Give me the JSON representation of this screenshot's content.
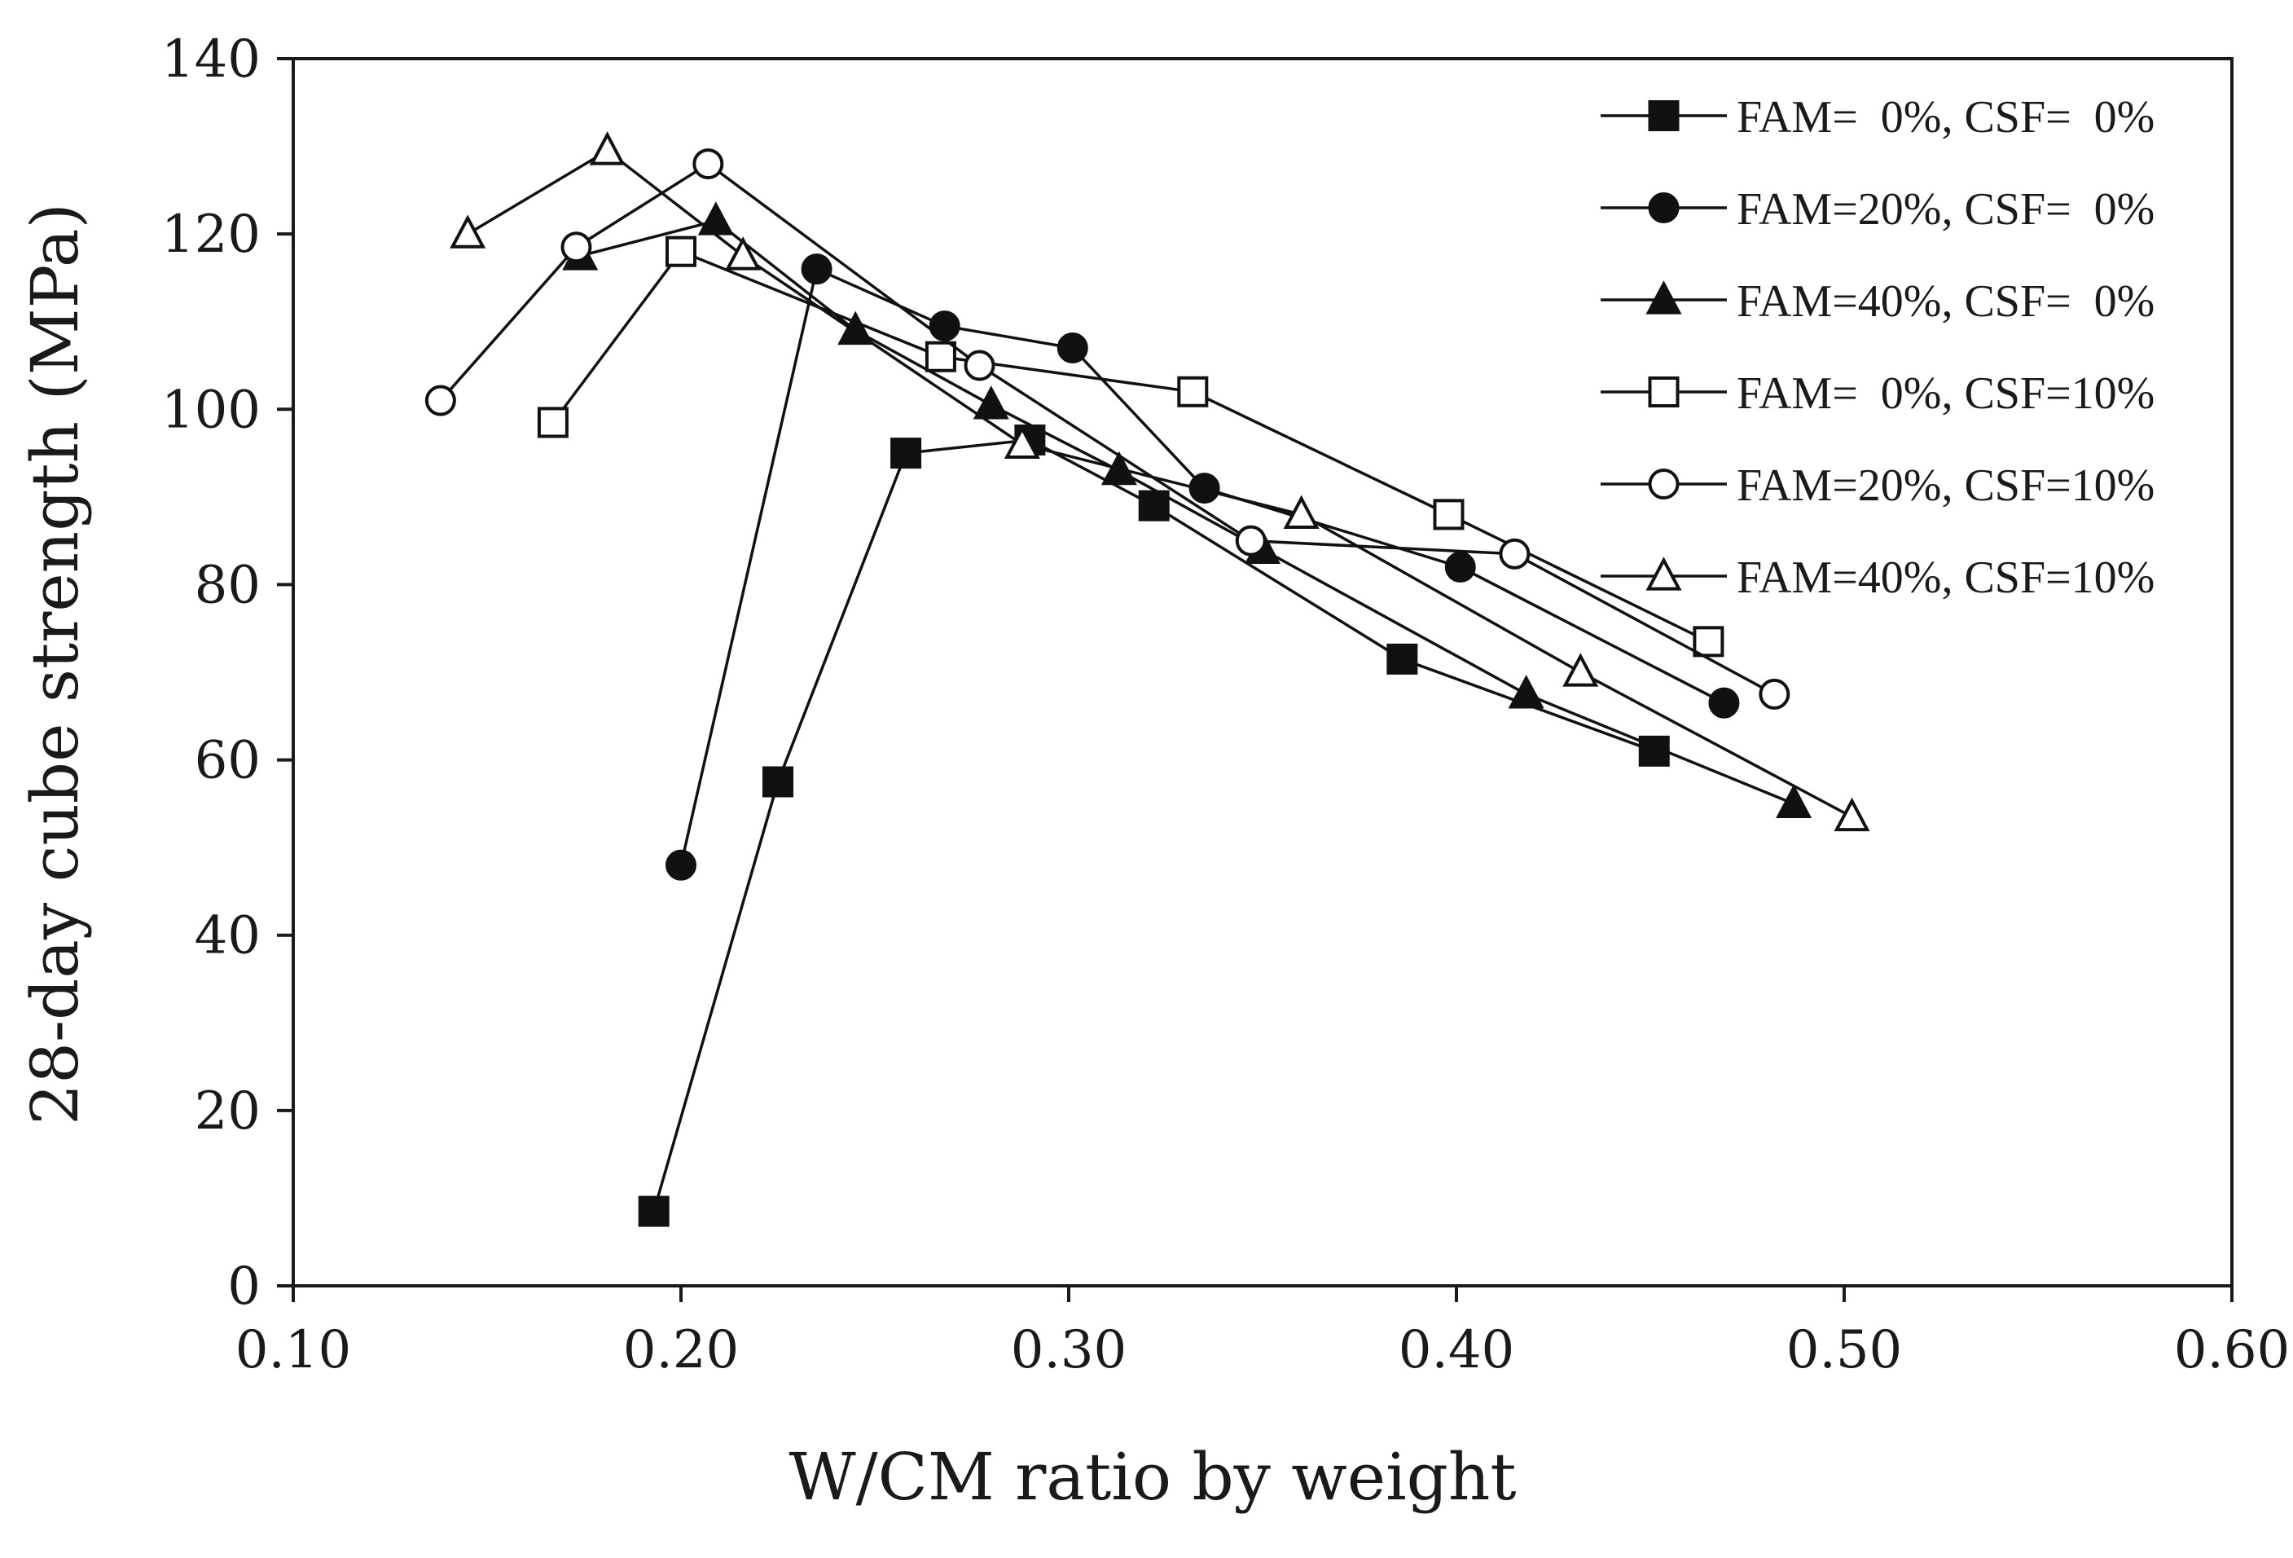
{
  "chart_data": {
    "type": "line",
    "title": "",
    "xlabel": "W/CM ratio by weight",
    "ylabel": "28-day cube strength (MPa)",
    "xlim": [
      0.1,
      0.6
    ],
    "ylim": [
      0,
      140
    ],
    "xticks": [
      0.1,
      0.2,
      0.3,
      0.4,
      0.5,
      0.6
    ],
    "xtick_labels": [
      "0.10",
      "0.20",
      "0.30",
      "0.40",
      "0.50",
      "0.60"
    ],
    "yticks": [
      0,
      20,
      40,
      60,
      80,
      100,
      120,
      140
    ],
    "ytick_labels": [
      "0",
      "20",
      "40",
      "60",
      "80",
      "100",
      "120",
      "140"
    ],
    "grid": false,
    "legend_position": "top-right",
    "series": [
      {
        "name": "FAM=  0%, CSF=  0%",
        "marker": "square",
        "filled": true,
        "color": "#111111",
        "x": [
          0.193,
          0.225,
          0.258,
          0.29,
          0.322,
          0.386,
          0.451
        ],
        "y": [
          8.5,
          57.5,
          95,
          96.5,
          89,
          71.5,
          61
        ]
      },
      {
        "name": "FAM=20%, CSF=  0%",
        "marker": "circle",
        "filled": true,
        "color": "#111111",
        "x": [
          0.2,
          0.235,
          0.268,
          0.301,
          0.335,
          0.401,
          0.469
        ],
        "y": [
          48,
          116,
          109.5,
          107,
          91,
          82,
          66.5
        ]
      },
      {
        "name": "FAM=40%, CSF=  0%",
        "marker": "triangle",
        "filled": true,
        "color": "#111111",
        "x": [
          0.174,
          0.209,
          0.245,
          0.28,
          0.313,
          0.35,
          0.418,
          0.487
        ],
        "y": [
          117.5,
          121.5,
          109,
          100.5,
          93,
          84,
          67.5,
          55
        ]
      },
      {
        "name": "FAM=  0%, CSF=10%",
        "marker": "square",
        "filled": false,
        "color": "#111111",
        "x": [
          0.167,
          0.2,
          0.267,
          0.332,
          0.398,
          0.465
        ],
        "y": [
          98.5,
          118,
          106,
          102,
          88,
          73.5
        ]
      },
      {
        "name": "FAM=20%, CSF=10%",
        "marker": "circle",
        "filled": false,
        "color": "#111111",
        "x": [
          0.138,
          0.173,
          0.207,
          0.277,
          0.347,
          0.415,
          0.482
        ],
        "y": [
          101,
          118.5,
          128,
          105,
          85,
          83.5,
          67.5
        ]
      },
      {
        "name": "FAM=40%, CSF=10%",
        "marker": "triangle",
        "filled": false,
        "color": "#111111",
        "x": [
          0.145,
          0.181,
          0.216,
          0.288,
          0.36,
          0.432,
          0.502
        ],
        "y": [
          120,
          129.5,
          117.5,
          96,
          88,
          70,
          53.5
        ]
      }
    ]
  }
}
